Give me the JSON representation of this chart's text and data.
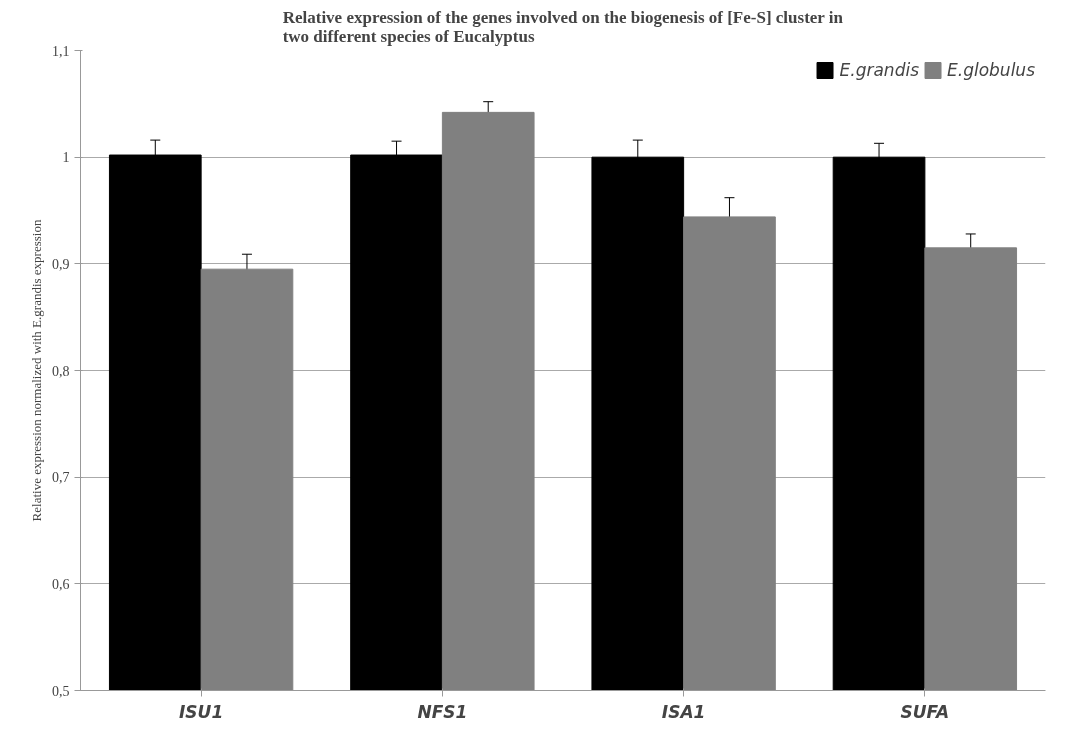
{
  "chart_data": {
    "type": "bar",
    "title": "Relative expression of the genes involved on the biogenesis of [Fe-S] cluster in\ntwo different species of Eucalyptus",
    "ylabel": "Relative expression normalized with E.grandis expression",
    "categories": [
      "ISU1",
      "NFS1",
      "ISA1",
      "SUFA"
    ],
    "series": [
      {
        "name": "E.grandis",
        "color": "#000000",
        "values": [
          1.002,
          1.002,
          1.0,
          1.0
        ],
        "errors": [
          0.014,
          0.013,
          0.016,
          0.013
        ]
      },
      {
        "name": "E.globulus",
        "color": "#808080",
        "values": [
          0.895,
          1.042,
          0.944,
          0.915
        ],
        "errors": [
          0.014,
          0.01,
          0.018,
          0.013
        ]
      }
    ],
    "ylim": [
      0.5,
      1.1
    ],
    "yticks": [
      {
        "value": 0.5,
        "label": "0,5"
      },
      {
        "value": 0.6,
        "label": "0,6"
      },
      {
        "value": 0.7,
        "label": "0,7"
      },
      {
        "value": 0.8,
        "label": "0,8"
      },
      {
        "value": 0.9,
        "label": "0,9"
      },
      1,
      {
        "value": 1.1,
        "label": "1,1"
      }
    ],
    "grid": "y",
    "legend": "top right"
  }
}
